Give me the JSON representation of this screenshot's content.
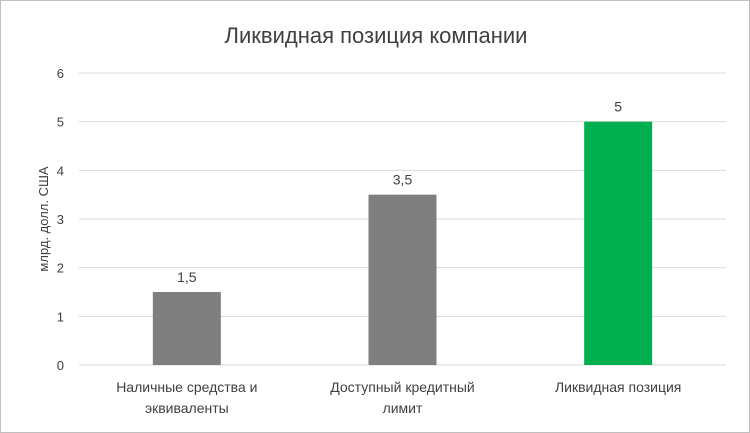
{
  "chart_data": {
    "type": "bar",
    "title": "Ликвидная позиция компании",
    "ylabel": "млрд. долл. США",
    "xlabel": "",
    "ylim": [
      0,
      6
    ],
    "yticks": [
      0,
      1,
      2,
      3,
      4,
      5,
      6
    ],
    "grid": true,
    "legend": "none",
    "categories": [
      [
        "Наличные средства и",
        "эквиваленты"
      ],
      [
        "Доступный кредитный",
        "лимит"
      ],
      [
        "Ликвидная позиция"
      ]
    ],
    "values": [
      1.5,
      3.5,
      5
    ],
    "data_labels": [
      "1,5",
      "3,5",
      "5"
    ],
    "bar_colors": [
      "#7f7f7f",
      "#7f7f7f",
      "#00b050"
    ],
    "text_color": "#404040",
    "grid_color": "#d9d9d9"
  }
}
